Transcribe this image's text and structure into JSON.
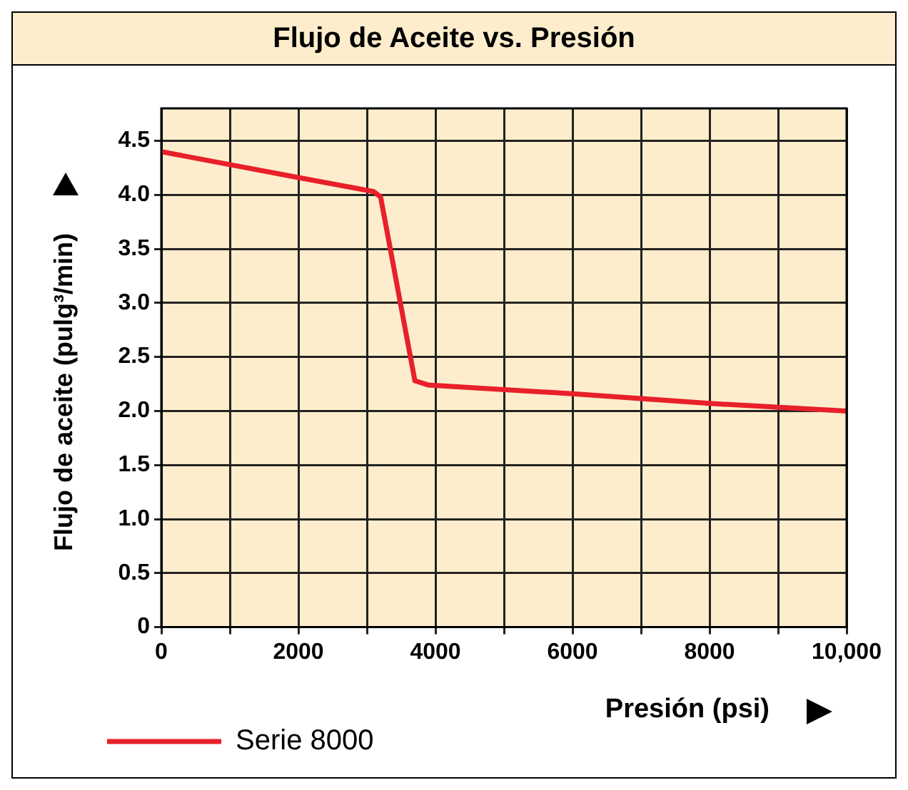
{
  "chart_data": {
    "type": "line",
    "title": "Flujo de Aceite vs. Presión",
    "xlabel": "Presión (psi)",
    "ylabel": "Flujo de aceite (pulg³/min)",
    "x": [
      0,
      1000,
      2000,
      3100,
      3200,
      3700,
      3900,
      6000,
      8000,
      10000
    ],
    "series": [
      {
        "name": "Serie 8000",
        "color": "#e8202a",
        "values": [
          4.4,
          4.28,
          4.16,
          4.03,
          3.98,
          2.28,
          2.24,
          2.16,
          2.07,
          2.0
        ]
      }
    ],
    "xlim": [
      0,
      10000
    ],
    "xticks": [
      0,
      {
        "value": 1000,
        "label": null
      },
      2000,
      {
        "value": 3000,
        "label": null
      },
      4000,
      {
        "value": 5000,
        "label": null
      },
      6000,
      {
        "value": 7000,
        "label": null
      },
      8000,
      {
        "value": 9000,
        "label": null
      },
      {
        "value": 10000,
        "label": "10,000"
      }
    ],
    "ylim": [
      0,
      4.8
    ],
    "yticks": [
      0,
      0.5,
      {
        "value": 1,
        "label": "1.0"
      },
      1.5,
      {
        "value": 2,
        "label": "2.0"
      },
      2.5,
      {
        "value": 3,
        "label": "3.0"
      },
      3.5,
      {
        "value": 4,
        "label": "4.0"
      },
      4.5
    ],
    "grid": true,
    "legend": "bottom left",
    "marker": "none",
    "line_style": "solid"
  }
}
